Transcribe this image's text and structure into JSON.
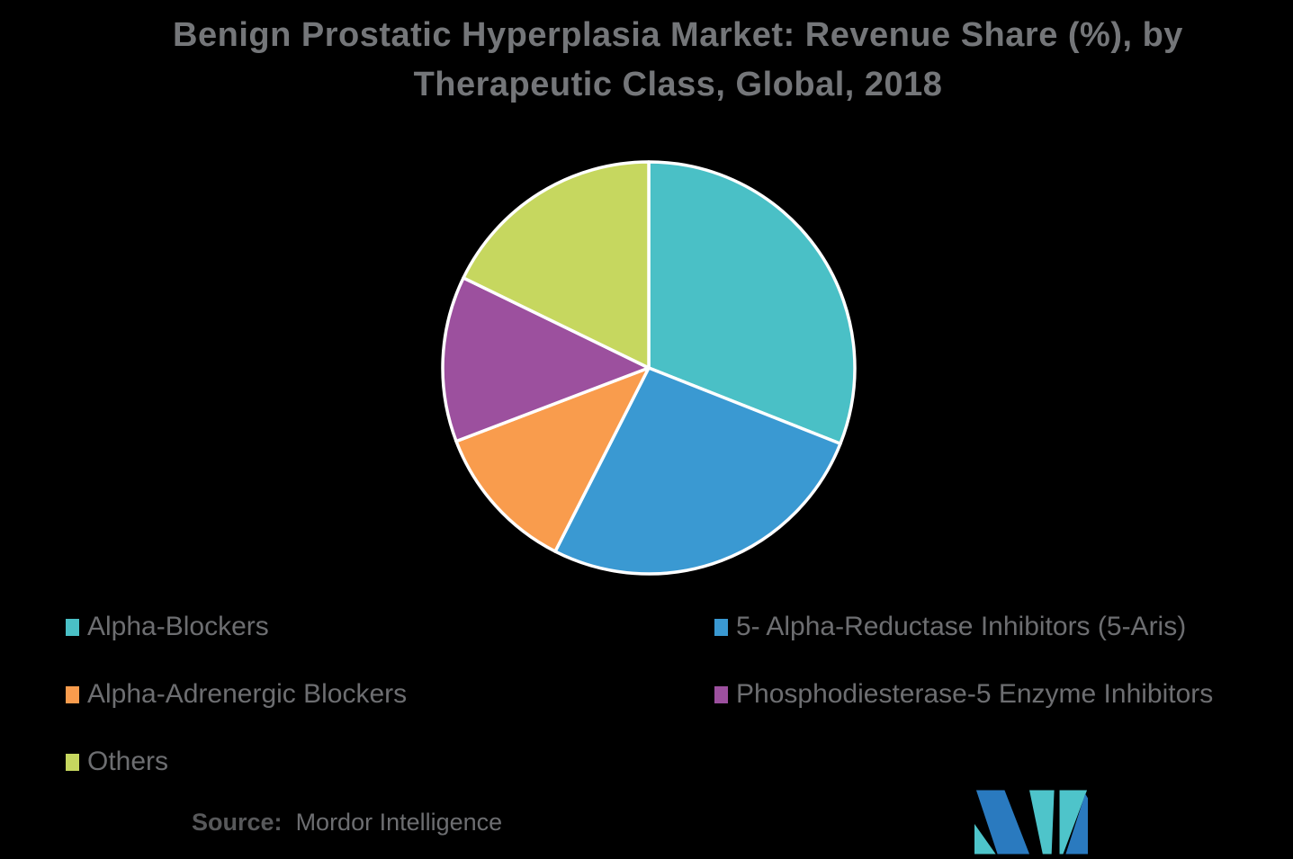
{
  "theme": {
    "background": "#000000",
    "title-color": "#747679",
    "legend-color": "#6D6E71",
    "source-label-color": "#58595B",
    "source-text-color": "#6D6E71"
  },
  "title": {
    "line1": "Benign Prostatic Hyperplasia Market: Revenue Share (%), by",
    "line2": "Therapeutic Class, Global, 2018"
  },
  "chart_data": {
    "type": "pie",
    "title": "Benign Prostatic Hyperplasia Market: Revenue Share (%), by Therapeutic Class, Global, 2018",
    "categories": [
      "Alpha-Blockers",
      "5- Alpha-Reductase Inhibitors (5-Aris)",
      "Alpha-Adrenergic Blockers",
      "Phosphodiesterase-5 Enzyme Inhibitors",
      "Others"
    ],
    "values": [
      31,
      26.5,
      11.7,
      13,
      17.8
    ],
    "values_estimated_from_slice_angles": true,
    "units": "revenue share %",
    "colors": [
      "#4AC0C6",
      "#3A99D2",
      "#F99C4D",
      "#9C509E",
      "#C6D75F"
    ],
    "start_angle_deg_from_12_oclock": 0,
    "direction": "clockwise",
    "slice_border_color": "#FFFFFF",
    "legend_position": "bottom",
    "data_labels": false
  },
  "legend": {
    "items": [
      {
        "label": "Alpha-Blockers"
      },
      {
        "label": "5- Alpha-Reductase Inhibitors (5-Aris)"
      },
      {
        "label": "Alpha-Adrenergic Blockers"
      },
      {
        "label": "Phosphodiesterase-5 Enzyme Inhibitors"
      },
      {
        "label": "Others"
      }
    ]
  },
  "source": {
    "label": "Source:",
    "text": "Mordor Intelligence"
  },
  "logo": {
    "teal": "#4EC4CA",
    "blue": "#2A7ABF"
  }
}
